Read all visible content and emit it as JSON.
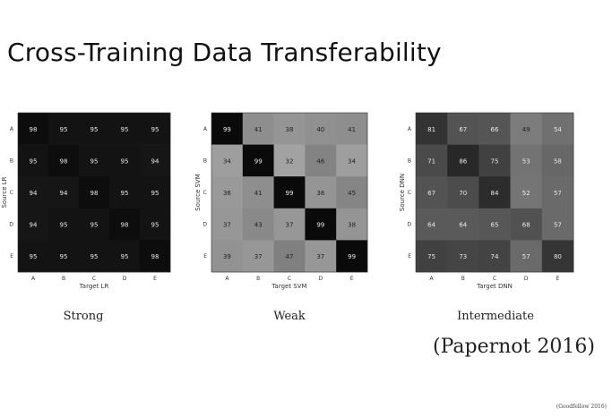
{
  "slide": {
    "title": "Cross-Training Data Transferability",
    "captions": [
      "Strong",
      "Weak",
      "Intermediate"
    ],
    "citation": "(Papernot 2016)",
    "footnote": "(Goodfellow 2016)"
  },
  "chart_data": [
    {
      "type": "heatmap",
      "xlabel": "Target LR",
      "ylabel": "Source LR",
      "x_categories": [
        "A",
        "B",
        "C",
        "D",
        "E"
      ],
      "y_categories": [
        "A",
        "B",
        "C",
        "D",
        "E"
      ],
      "values": [
        [
          98,
          95,
          95,
          95,
          95
        ],
        [
          95,
          98,
          95,
          95,
          94
        ],
        [
          94,
          94,
          98,
          95,
          95
        ],
        [
          94,
          95,
          95,
          98,
          95
        ],
        [
          95,
          95,
          95,
          95,
          98
        ]
      ],
      "colormap": "gray_r"
    },
    {
      "type": "heatmap",
      "xlabel": "Target SVM",
      "ylabel": "Source SVM",
      "x_categories": [
        "A",
        "B",
        "C",
        "D",
        "E"
      ],
      "y_categories": [
        "A",
        "B",
        "C",
        "D",
        "E"
      ],
      "values": [
        [
          99,
          41,
          38,
          40,
          41
        ],
        [
          34,
          99,
          32,
          46,
          34
        ],
        [
          36,
          41,
          99,
          38,
          45
        ],
        [
          37,
          43,
          37,
          99,
          38
        ],
        [
          39,
          37,
          47,
          37,
          99
        ]
      ],
      "colormap": "gray_r"
    },
    {
      "type": "heatmap",
      "xlabel": "Target DNN",
      "ylabel": "Source DNN",
      "x_categories": [
        "A",
        "B",
        "C",
        "D",
        "E"
      ],
      "y_categories": [
        "A",
        "B",
        "C",
        "D",
        "E"
      ],
      "values": [
        [
          81,
          67,
          66,
          49,
          54
        ],
        [
          71,
          86,
          75,
          53,
          58
        ],
        [
          67,
          70,
          84,
          52,
          57
        ],
        [
          64,
          64,
          65,
          68,
          57
        ],
        [
          75,
          73,
          74,
          57,
          80
        ]
      ],
      "colormap": "gray_r"
    }
  ]
}
